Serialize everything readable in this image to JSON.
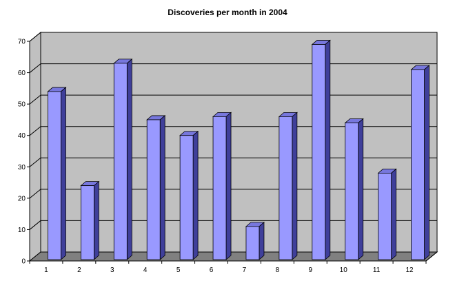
{
  "chart_data": {
    "type": "bar",
    "title": "Discoveries per month in 2004",
    "xlabel": "",
    "ylabel": "",
    "categories": [
      "1",
      "2",
      "3",
      "4",
      "5",
      "6",
      "7",
      "8",
      "9",
      "10",
      "11",
      "12"
    ],
    "values": [
      54,
      24,
      63,
      45,
      40,
      46,
      11,
      46,
      69,
      44,
      28,
      61
    ],
    "ylim": [
      0,
      70
    ],
    "yticks": [
      "0",
      "10",
      "20",
      "30",
      "40",
      "50",
      "60",
      "70"
    ],
    "grid": true,
    "legend": "none",
    "style": "3d-column",
    "colors": {
      "bar_front": "#9999ff",
      "bar_side": "#3f3f9a",
      "bar_top": "#7777dd",
      "bar_edge": "#000000",
      "back_wall": "#c0c0c0",
      "floor": "#808080",
      "gridline": "#000000"
    }
  }
}
